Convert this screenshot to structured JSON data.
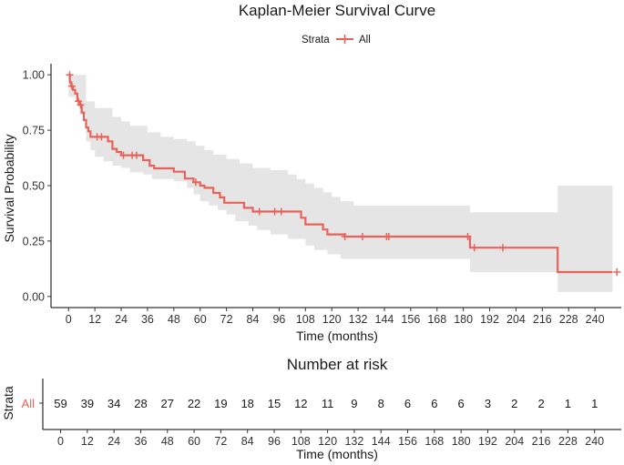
{
  "chart_data": [
    {
      "type": "line",
      "subtype": "kaplan-meier-step",
      "title": "Kaplan-Meier Survival Curve",
      "xlabel": "Time (months)",
      "ylabel": "Survival Probability",
      "xlim": [
        -8,
        252
      ],
      "ylim": [
        -0.05,
        1.05
      ],
      "xticks": [
        0,
        12,
        24,
        36,
        48,
        60,
        72,
        84,
        96,
        108,
        120,
        132,
        144,
        156,
        168,
        180,
        192,
        204,
        216,
        228,
        240
      ],
      "yticks": [
        0.0,
        0.25,
        0.5,
        0.75,
        1.0
      ],
      "ytick_labels": [
        "0.00",
        "0.25",
        "0.50",
        "0.75",
        "1.00"
      ],
      "legend": {
        "title": "Strata",
        "position": "top",
        "entries": [
          "All"
        ]
      },
      "colors": {
        "curve": "#e8625a",
        "band": "#e5e5e5",
        "axis": "#000000"
      },
      "series": [
        {
          "name": "All",
          "steps": [
            [
              0,
              1.0
            ],
            [
              0.6,
              0.966
            ],
            [
              1.2,
              0.949
            ],
            [
              2,
              0.932
            ],
            [
              3,
              0.915
            ],
            [
              4,
              0.881
            ],
            [
              5,
              0.864
            ],
            [
              6,
              0.83
            ],
            [
              7,
              0.796
            ],
            [
              8,
              0.762
            ],
            [
              9,
              0.745
            ],
            [
              10,
              0.72
            ],
            [
              18,
              0.7
            ],
            [
              20,
              0.666
            ],
            [
              22,
              0.652
            ],
            [
              24,
              0.637
            ],
            [
              34,
              0.615
            ],
            [
              37,
              0.59
            ],
            [
              39,
              0.578
            ],
            [
              48,
              0.563
            ],
            [
              53,
              0.532
            ],
            [
              57,
              0.515
            ],
            [
              60,
              0.5
            ],
            [
              62,
              0.49
            ],
            [
              66,
              0.467
            ],
            [
              69,
              0.447
            ],
            [
              71,
              0.423
            ],
            [
              80,
              0.4
            ],
            [
              84,
              0.383
            ],
            [
              96,
              0.383
            ],
            [
              106,
              0.355
            ],
            [
              108,
              0.325
            ],
            [
              116,
              0.302
            ],
            [
              118,
              0.28
            ],
            [
              126,
              0.27
            ],
            [
              183,
              0.22
            ],
            [
              223,
              0.11
            ],
            [
              248,
              0.11
            ]
          ],
          "ci_lower": [
            [
              0,
              0.9
            ],
            [
              5,
              0.82
            ],
            [
              8,
              0.7
            ],
            [
              10,
              0.66
            ],
            [
              12,
              0.63
            ],
            [
              16,
              0.61
            ],
            [
              20,
              0.59
            ],
            [
              24,
              0.58
            ],
            [
              28,
              0.56
            ],
            [
              34,
              0.55
            ],
            [
              38,
              0.53
            ],
            [
              48,
              0.52
            ],
            [
              54,
              0.49
            ],
            [
              57,
              0.46
            ],
            [
              60,
              0.43
            ],
            [
              64,
              0.41
            ],
            [
              68,
              0.39
            ],
            [
              72,
              0.37
            ],
            [
              76,
              0.34
            ],
            [
              82,
              0.32
            ],
            [
              86,
              0.3
            ],
            [
              92,
              0.28
            ],
            [
              100,
              0.26
            ],
            [
              108,
              0.23
            ],
            [
              112,
              0.21
            ],
            [
              118,
              0.19
            ],
            [
              124,
              0.17
            ],
            [
              183,
              0.11
            ],
            [
              223,
              0.02
            ],
            [
              248,
              0.02
            ]
          ],
          "ci_upper": [
            [
              0,
              1.0
            ],
            [
              8,
              0.88
            ],
            [
              12,
              0.85
            ],
            [
              20,
              0.81
            ],
            [
              24,
              0.79
            ],
            [
              28,
              0.77
            ],
            [
              36,
              0.74
            ],
            [
              42,
              0.72
            ],
            [
              48,
              0.71
            ],
            [
              54,
              0.7
            ],
            [
              58,
              0.68
            ],
            [
              62,
              0.66
            ],
            [
              66,
              0.64
            ],
            [
              72,
              0.62
            ],
            [
              78,
              0.6
            ],
            [
              84,
              0.58
            ],
            [
              92,
              0.57
            ],
            [
              100,
              0.55
            ],
            [
              104,
              0.53
            ],
            [
              108,
              0.51
            ],
            [
              112,
              0.49
            ],
            [
              116,
              0.47
            ],
            [
              120,
              0.45
            ],
            [
              124,
              0.43
            ],
            [
              130,
              0.41
            ],
            [
              183,
              0.38
            ],
            [
              223,
              0.5
            ],
            [
              248,
              0.5
            ]
          ],
          "censor_times": [
            0.5,
            1.5,
            4.5,
            5.5,
            13,
            15,
            25,
            29,
            31,
            58,
            87,
            94,
            97,
            126,
            134,
            145,
            146,
            182,
            185,
            198,
            250
          ]
        }
      ]
    },
    {
      "type": "table",
      "title": "Number at risk",
      "xlabel": "Time (months)",
      "ylabel": "Strata",
      "row_label": "All",
      "times": [
        0,
        12,
        24,
        36,
        48,
        60,
        72,
        84,
        96,
        108,
        120,
        132,
        144,
        156,
        168,
        180,
        192,
        204,
        216,
        228,
        240
      ],
      "values": [
        59,
        39,
        34,
        28,
        27,
        22,
        19,
        18,
        15,
        12,
        11,
        9,
        8,
        6,
        6,
        6,
        3,
        2,
        2,
        1,
        1
      ]
    }
  ]
}
